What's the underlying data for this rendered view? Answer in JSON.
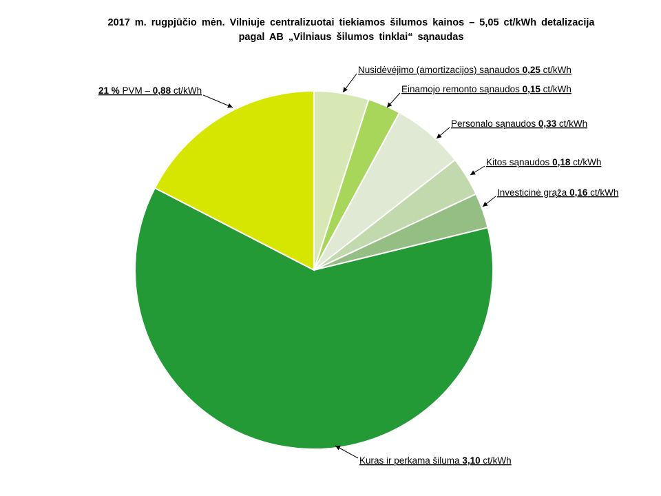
{
  "title_line1": "2017 m. rugpjūčio mėn. Vilniuje centralizuotai tiekiamos šilumos kainos – 5,05 ct/kWh detalizacija",
  "title_line2": "pagal AB „Vilniaus šilumos tinklai“ sąnaudas",
  "chart_data": {
    "type": "pie",
    "title": "2017 m. rugpjūčio mėn. Vilniuje centralizuotai tiekiamos šilumos kainos – 5,05 ct/kWh detalizacija pagal AB „Vilniaus šilumos tinklai“ sąnaudas",
    "unit": "ct/kWh",
    "total": 5.05,
    "slices": [
      {
        "label": "Nusidėvėjimo (amortizacijos) sąnaudos",
        "value": 0.25,
        "value_text": "0,25",
        "prefix": "",
        "color": "#d7e8b5"
      },
      {
        "label": "Einamojo remonto sąnaudos",
        "value": 0.15,
        "value_text": "0,15",
        "prefix": "",
        "color": "#a8d65a"
      },
      {
        "label": "Personalo sąnaudos",
        "value": 0.33,
        "value_text": "0,33",
        "prefix": "",
        "color": "#dfe9d3"
      },
      {
        "label": "Kitos sąnaudos",
        "value": 0.18,
        "value_text": "0,18",
        "prefix": "",
        "color": "#c2d9ad"
      },
      {
        "label": "Investicinė grąža",
        "value": 0.16,
        "value_text": "0,16",
        "prefix": "",
        "color": "#95be84"
      },
      {
        "label": "Kuras ir perkama šiluma",
        "value": 3.1,
        "value_text": "3,10",
        "prefix": "",
        "color": "#239a36"
      },
      {
        "label": "PVM –",
        "value": 0.88,
        "value_text": "0,88",
        "prefix": "21 %",
        "color": "#d7e600"
      }
    ]
  }
}
